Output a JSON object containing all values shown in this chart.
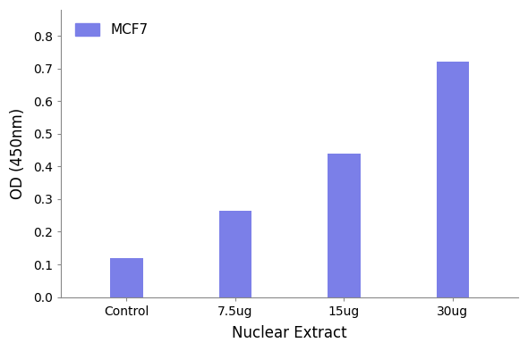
{
  "categories": [
    "Control",
    "7.5ug",
    "15ug",
    "30ug"
  ],
  "values": [
    0.12,
    0.265,
    0.44,
    0.722
  ],
  "bar_color": "#7B7FE8",
  "bar_width": 0.3,
  "xlabel": "Nuclear Extract",
  "ylabel": "OD (450nm)",
  "ylim": [
    0,
    0.88
  ],
  "yticks": [
    0.0,
    0.1,
    0.2,
    0.3,
    0.4,
    0.5,
    0.6,
    0.7,
    0.8
  ],
  "legend_label": "MCF7",
  "legend_color": "#7B7FE8",
  "xlabel_fontsize": 12,
  "ylabel_fontsize": 12,
  "tick_fontsize": 10,
  "legend_fontsize": 11,
  "background_color": "#ffffff",
  "spine_color": "#888888"
}
